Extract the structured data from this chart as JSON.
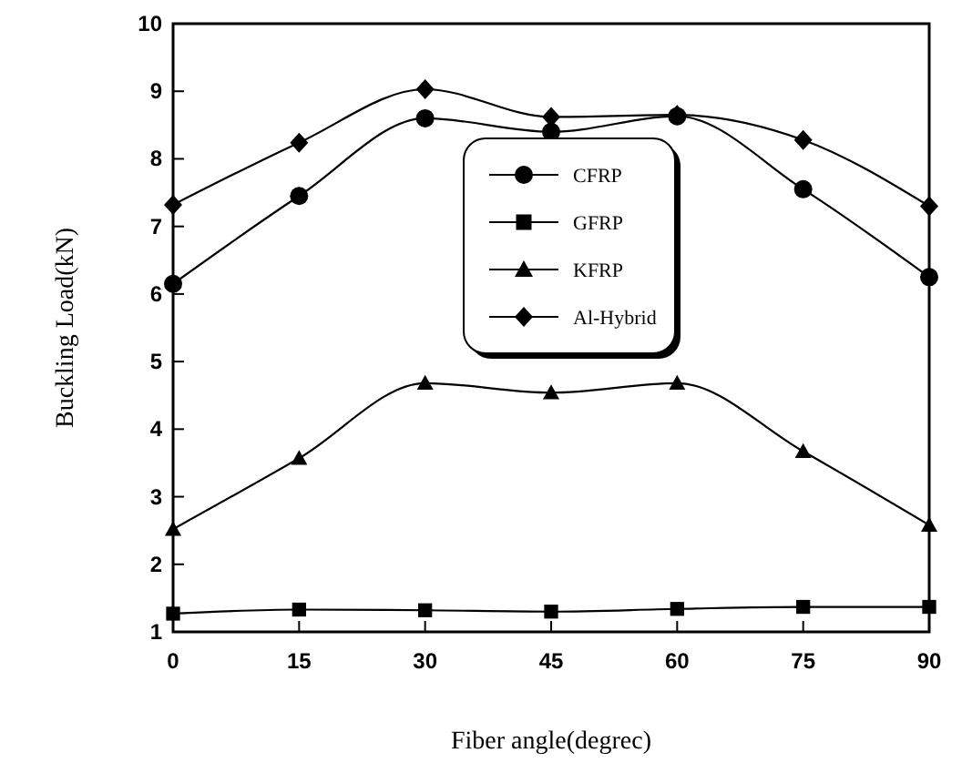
{
  "chart_data": {
    "type": "line",
    "xlabel": "Fiber angle(degrec)",
    "ylabel": "Buckling Load(kN)",
    "x": [
      0,
      15,
      30,
      45,
      60,
      75,
      90
    ],
    "xlim": [
      0,
      90
    ],
    "xticks": [
      0,
      15,
      30,
      45,
      60,
      75,
      90
    ],
    "ylim": [
      1,
      10
    ],
    "yticks": [
      1,
      2,
      3,
      4,
      5,
      6,
      7,
      8,
      9,
      10
    ],
    "legend": "center",
    "grid": false,
    "line_style": "solid",
    "series": [
      {
        "name": "CFRP",
        "color": "#000000",
        "marker": "circle",
        "values": [
          6.15,
          7.45,
          8.6,
          8.4,
          8.63,
          7.55,
          6.25
        ]
      },
      {
        "name": "GFRP",
        "color": "#000000",
        "marker": "square",
        "values": [
          1.27,
          1.33,
          1.32,
          1.3,
          1.34,
          1.37,
          1.37
        ]
      },
      {
        "name": "KFRP",
        "color": "#000000",
        "marker": "triangle",
        "values": [
          2.52,
          3.57,
          4.68,
          4.54,
          4.68,
          3.67,
          2.58
        ]
      },
      {
        "name": "Al-Hybrid",
        "color": "#000000",
        "marker": "diamond",
        "values": [
          7.32,
          8.24,
          9.03,
          8.62,
          8.65,
          8.28,
          7.3
        ]
      }
    ]
  }
}
